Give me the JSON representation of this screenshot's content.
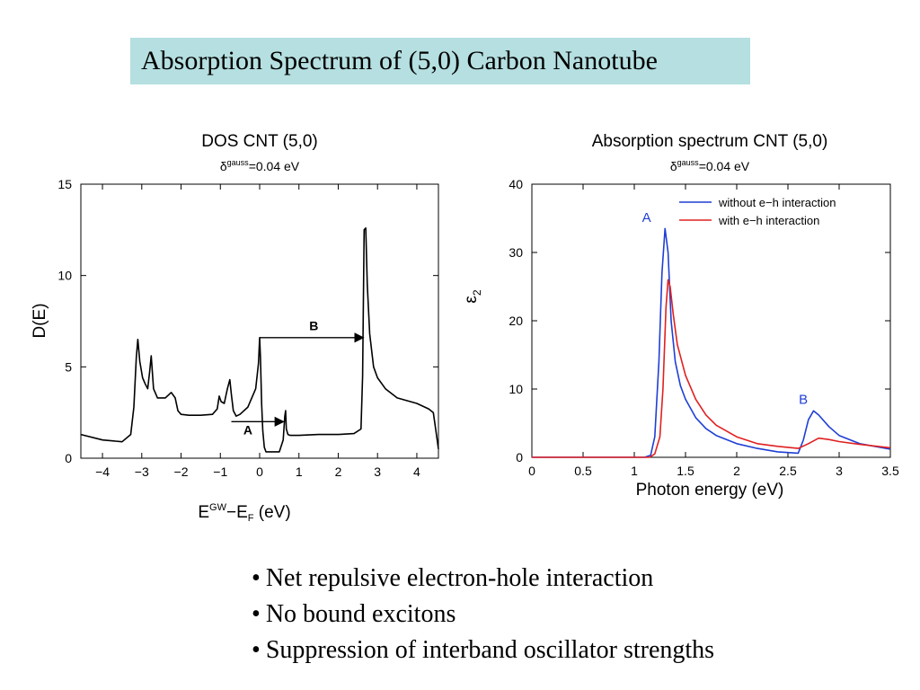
{
  "slide": {
    "title": "Absorption Spectrum of (5,0) Carbon Nanotube",
    "bullets": [
      "Net repulsive electron-hole interaction",
      "No bound excitons",
      "Suppression of interband oscillator strengths"
    ]
  },
  "chart_data": [
    {
      "type": "line",
      "title": "DOS CNT (5,0)",
      "subtitle": {
        "symbol": "δ",
        "superscript": "gauss",
        "rest": "=0.04 eV"
      },
      "ylabel": "D(E)",
      "xlabel": {
        "base": "E",
        "sup": "GW",
        "mid": "−E",
        "sub": "F",
        "rest": " (eV)"
      },
      "xlim": [
        -4.55,
        4.55
      ],
      "ylim": [
        0,
        15
      ],
      "xticks": [
        -4,
        -3,
        -2,
        -1,
        0,
        1,
        2,
        3,
        4
      ],
      "xtick_labels": [
        "−4",
        "−3",
        "−2",
        "−1",
        "0",
        "1",
        "2",
        "3",
        "4"
      ],
      "yticks": [
        0,
        5,
        10,
        15
      ],
      "ytick_labels": [
        "0",
        "5",
        "10",
        "15"
      ],
      "grid": false,
      "series": [
        {
          "color": "#000000",
          "x": [
            -4.55,
            -4.0,
            -3.5,
            -3.28,
            -3.2,
            -3.14,
            -3.1,
            -3.05,
            -2.98,
            -2.92,
            -2.85,
            -2.8,
            -2.76,
            -2.7,
            -2.6,
            -2.4,
            -2.25,
            -2.15,
            -2.08,
            -2.0,
            -1.8,
            -1.5,
            -1.2,
            -1.08,
            -1.03,
            -0.98,
            -0.9,
            -0.82,
            -0.76,
            -0.72,
            -0.67,
            -0.62,
            -0.6,
            -0.5,
            -0.3,
            -0.1,
            -0.03,
            0.0,
            0.02,
            0.05,
            0.08,
            0.12,
            0.16,
            0.3,
            0.5,
            0.6,
            0.64,
            0.66,
            0.68,
            0.72,
            0.78,
            0.85,
            1.0,
            1.5,
            2.0,
            2.4,
            2.58,
            2.62,
            2.66,
            2.7,
            2.74,
            2.8,
            2.9,
            3.0,
            3.2,
            3.5,
            4.0,
            4.3,
            4.42,
            4.48,
            4.55
          ],
          "y": [
            1.3,
            1.0,
            0.9,
            1.3,
            2.8,
            5.5,
            6.5,
            5.3,
            4.4,
            4.1,
            3.8,
            4.7,
            5.6,
            3.8,
            3.3,
            3.3,
            3.6,
            3.3,
            2.6,
            2.4,
            2.35,
            2.35,
            2.4,
            2.7,
            3.4,
            3.1,
            3.0,
            3.8,
            4.3,
            3.5,
            2.6,
            2.4,
            2.3,
            2.4,
            2.8,
            3.8,
            5.2,
            6.6,
            5.5,
            3.0,
            1.5,
            0.6,
            0.35,
            0.35,
            0.35,
            1.0,
            2.3,
            2.6,
            1.6,
            1.3,
            1.25,
            1.25,
            1.25,
            1.3,
            1.3,
            1.35,
            1.6,
            4.5,
            12.5,
            12.6,
            9.5,
            6.8,
            5.0,
            4.4,
            3.8,
            3.3,
            3.0,
            2.7,
            2.5,
            1.6,
            0.5
          ]
        }
      ],
      "annotations": [
        {
          "label": "A",
          "from": [
            -0.72,
            2.0
          ],
          "to": [
            0.65,
            2.0
          ],
          "label_at": [
            -0.3,
            1.3
          ]
        },
        {
          "label": "B",
          "from": [
            0.0,
            6.6
          ],
          "to": [
            2.68,
            6.6
          ],
          "label_at": [
            1.38,
            7.0
          ]
        }
      ]
    },
    {
      "type": "line",
      "title": "Absorption spectrum CNT (5,0)",
      "subtitle": {
        "symbol": "δ",
        "superscript": "gauss",
        "rest": "=0.04 eV"
      },
      "ylabel": {
        "base": "ε",
        "sub": "2"
      },
      "xlabel": "Photon energy (eV)",
      "xlim": [
        0,
        3.5
      ],
      "ylim": [
        0,
        40
      ],
      "xticks": [
        0,
        0.5,
        1,
        1.5,
        2,
        2.5,
        3,
        3.5
      ],
      "xtick_labels": [
        "0",
        "0.5",
        "1",
        "1.5",
        "2",
        "2.5",
        "3",
        "3.5"
      ],
      "yticks": [
        0,
        10,
        20,
        30,
        40
      ],
      "ytick_labels": [
        "0",
        "10",
        "20",
        "30",
        "40"
      ],
      "grid": false,
      "legend": "top-right",
      "series": [
        {
          "name": "without e−h interaction",
          "color": "#1f3fd4",
          "x": [
            0,
            1.1,
            1.16,
            1.2,
            1.24,
            1.27,
            1.3,
            1.33,
            1.36,
            1.4,
            1.45,
            1.5,
            1.6,
            1.7,
            1.8,
            2.0,
            2.2,
            2.4,
            2.6,
            2.65,
            2.7,
            2.75,
            2.8,
            2.9,
            3.0,
            3.2,
            3.5
          ],
          "y": [
            0,
            0,
            0.3,
            3,
            14,
            27,
            33.5,
            30,
            20,
            14,
            10.5,
            8.5,
            5.8,
            4.2,
            3.2,
            2.0,
            1.3,
            0.8,
            0.6,
            2.5,
            5.5,
            6.8,
            6.2,
            4.5,
            3.2,
            2.0,
            1.2
          ]
        },
        {
          "name": "with e−h interaction",
          "color": "#e02020",
          "x": [
            0,
            1.15,
            1.2,
            1.25,
            1.28,
            1.31,
            1.33,
            1.35,
            1.38,
            1.42,
            1.5,
            1.6,
            1.7,
            1.8,
            2.0,
            2.2,
            2.4,
            2.6,
            2.7,
            2.8,
            2.9,
            3.0,
            3.2,
            3.5
          ],
          "y": [
            0,
            0,
            0.5,
            3,
            10,
            22,
            26,
            25,
            21,
            16.5,
            12,
            8.5,
            6.2,
            4.7,
            3.0,
            2.0,
            1.6,
            1.3,
            2.0,
            2.8,
            2.6,
            2.3,
            1.9,
            1.4
          ]
        }
      ],
      "annotations": [
        {
          "label": "A",
          "at": [
            1.12,
            34.5
          ],
          "color": "#1f3fd4"
        },
        {
          "label": "B",
          "at": [
            2.65,
            7.8
          ],
          "color": "#1f3fd4"
        }
      ]
    }
  ]
}
